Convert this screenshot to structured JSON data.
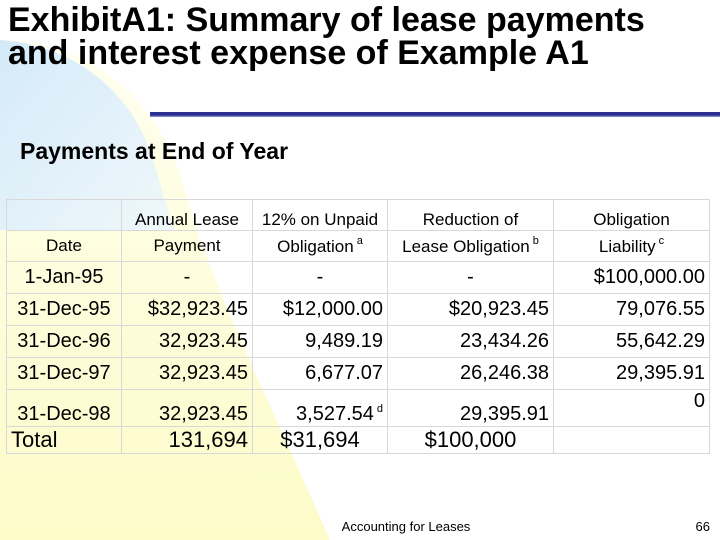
{
  "slide": {
    "title": "ExhibitA1: Summary of lease payments and interest expense of Example A1",
    "subtitle": "Payments at End of Year",
    "footer": "Accounting for Leases",
    "page_number": "66"
  },
  "table": {
    "header_row1": [
      "",
      "Annual Lease",
      "12% on Unpaid",
      "Reduction of",
      "Obligation"
    ],
    "header_row2": [
      "Date",
      "Payment",
      "Obligation",
      "Lease Obligation",
      "Liability"
    ],
    "footnote_marks": {
      "interest": "a",
      "reduction": "b",
      "liability": "c",
      "last_interest": "d"
    },
    "rows": [
      {
        "date": "1-Jan-95",
        "payment": "-",
        "interest": "-",
        "reduction": "-",
        "liability": "$100,000.00"
      },
      {
        "date": "31-Dec-95",
        "payment": "$32,923.45",
        "interest": "$12,000.00",
        "reduction": "$20,923.45",
        "liability": "79,076.55"
      },
      {
        "date": "31-Dec-96",
        "payment": "32,923.45",
        "interest": "9,489.19",
        "reduction": "23,434.26",
        "liability": "55,642.29"
      },
      {
        "date": "31-Dec-97",
        "payment": "32,923.45",
        "interest": "6,677.07",
        "reduction": "26,246.38",
        "liability": "29,395.91"
      },
      {
        "date": "31-Dec-98",
        "payment": "32,923.45",
        "interest": "3,527.54",
        "reduction": "29,395.91",
        "liability": "0"
      }
    ],
    "total": {
      "label": "Total",
      "payment": "131,694",
      "interest": "$31,694",
      "reduction": "$100,000",
      "liability": ""
    }
  },
  "colors": {
    "title_rule": "#2b2f8f",
    "swoosh_yellow": "#fdfbd0",
    "swoosh_blue": "#d6ecfb",
    "grid": "#d8d8d8"
  }
}
